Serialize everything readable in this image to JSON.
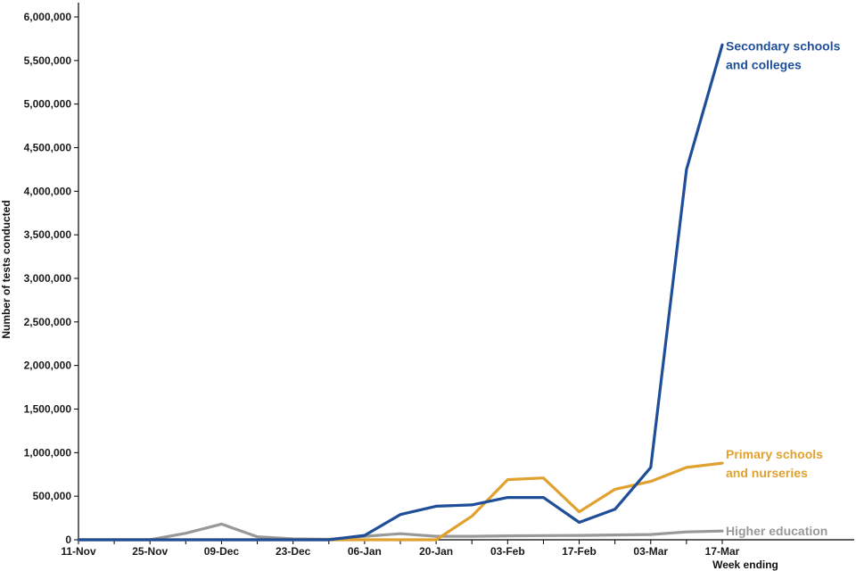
{
  "chart_data": {
    "type": "line",
    "title": "",
    "xlabel": "Week ending",
    "ylabel": "Number of tests conducted",
    "ylim": [
      0,
      6000000
    ],
    "y_ticks": [
      0,
      500000,
      1000000,
      1500000,
      2000000,
      2500000,
      3000000,
      3500000,
      4000000,
      4500000,
      5000000,
      5500000,
      6000000
    ],
    "y_tick_labels": [
      "0",
      "500,000",
      "1,000,000",
      "1,500,000",
      "2,000,000",
      "2,500,000",
      "3,000,000",
      "3,500,000",
      "4,000,000",
      "4,500,000",
      "5,000,000",
      "5,500,000",
      "6,000,000"
    ],
    "x": [
      "11-Nov",
      "18-Nov",
      "25-Nov",
      "02-Dec",
      "09-Dec",
      "16-Dec",
      "23-Dec",
      "30-Dec",
      "06-Jan",
      "13-Jan",
      "20-Jan",
      "27-Jan",
      "03-Feb",
      "10-Feb",
      "17-Feb",
      "24-Feb",
      "03-Mar",
      "10-Mar",
      "17-Mar"
    ],
    "x_tick_labels": [
      "11-Nov",
      "25-Nov",
      "09-Dec",
      "23-Dec",
      "06-Jan",
      "20-Jan",
      "03-Feb",
      "17-Feb",
      "03-Mar",
      "17-Mar"
    ],
    "grid": false,
    "legend": "none",
    "series": [
      {
        "name": "Secondary schools and colleges",
        "label_lines": [
          "Secondary schools",
          "and colleges"
        ],
        "color": "#1f4e99",
        "values": [
          0,
          0,
          0,
          0,
          0,
          0,
          0,
          0,
          50000,
          290000,
          385000,
          400000,
          485000,
          485000,
          200000,
          350000,
          830000,
          4250000,
          5680000
        ]
      },
      {
        "name": "Primary schools and nurseries",
        "label_lines": [
          "Primary schools",
          "and nurseries"
        ],
        "color": "#e0a12f",
        "values": [
          0,
          0,
          0,
          0,
          0,
          0,
          0,
          0,
          0,
          0,
          0,
          270000,
          690000,
          710000,
          320000,
          580000,
          670000,
          830000,
          880000
        ]
      },
      {
        "name": "Higher education",
        "label_lines": [
          "Higher education"
        ],
        "color": "#999999",
        "values": [
          0,
          0,
          0,
          75000,
          180000,
          35000,
          10000,
          5000,
          40000,
          70000,
          40000,
          40000,
          45000,
          48000,
          50000,
          55000,
          60000,
          90000,
          100000
        ]
      }
    ]
  }
}
